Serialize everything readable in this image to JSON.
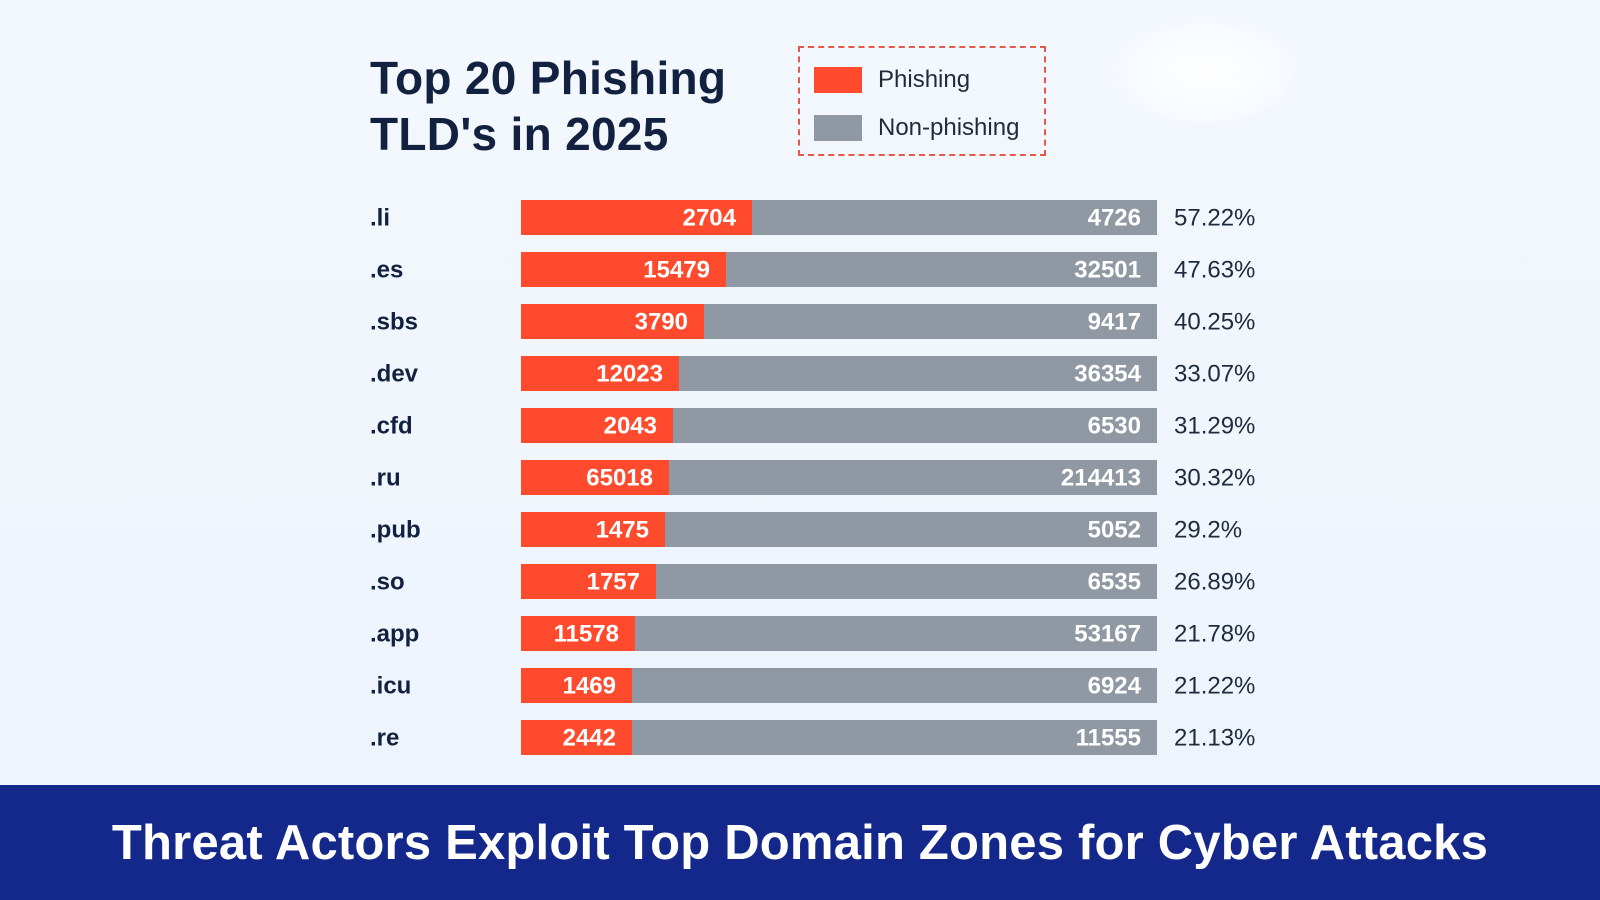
{
  "chart_data": {
    "type": "bar",
    "orientation": "horizontal",
    "stacked": "percent",
    "title": "Top 20 Phishing TLD's in 2025",
    "title_lines": [
      "Top 20 Phishing",
      "TLD's in 2025"
    ],
    "legend_position": "top-right",
    "categories": [
      ".li",
      ".es",
      ".sbs",
      ".dev",
      ".cfd",
      ".ru",
      ".pub",
      ".so",
      ".app",
      ".icu",
      ".re"
    ],
    "series": [
      {
        "name": "Phishing",
        "color": "#ff4a2e",
        "values": [
          2704,
          15479,
          3790,
          12023,
          2043,
          65018,
          1475,
          1757,
          11578,
          1469,
          2442
        ]
      },
      {
        "name": "Non-phishing",
        "color": "#8f98a3",
        "values": [
          4726,
          32501,
          9417,
          36354,
          6530,
          214413,
          5052,
          6535,
          53167,
          6924,
          11555
        ]
      }
    ],
    "percentages": [
      "57.22%",
      "47.63%",
      "40.25%",
      "33.07%",
      "31.29%",
      "30.32%",
      "29.2%",
      "26.89%",
      "21.78%",
      "21.22%",
      "21.13%"
    ]
  },
  "legend": {
    "phishing_label": "Phishing",
    "non_phishing_label": "Non-phishing"
  },
  "banner": {
    "text": "Threat Actors Exploit Top Domain Zones for Cyber Attacks",
    "background": "#13288a"
  }
}
